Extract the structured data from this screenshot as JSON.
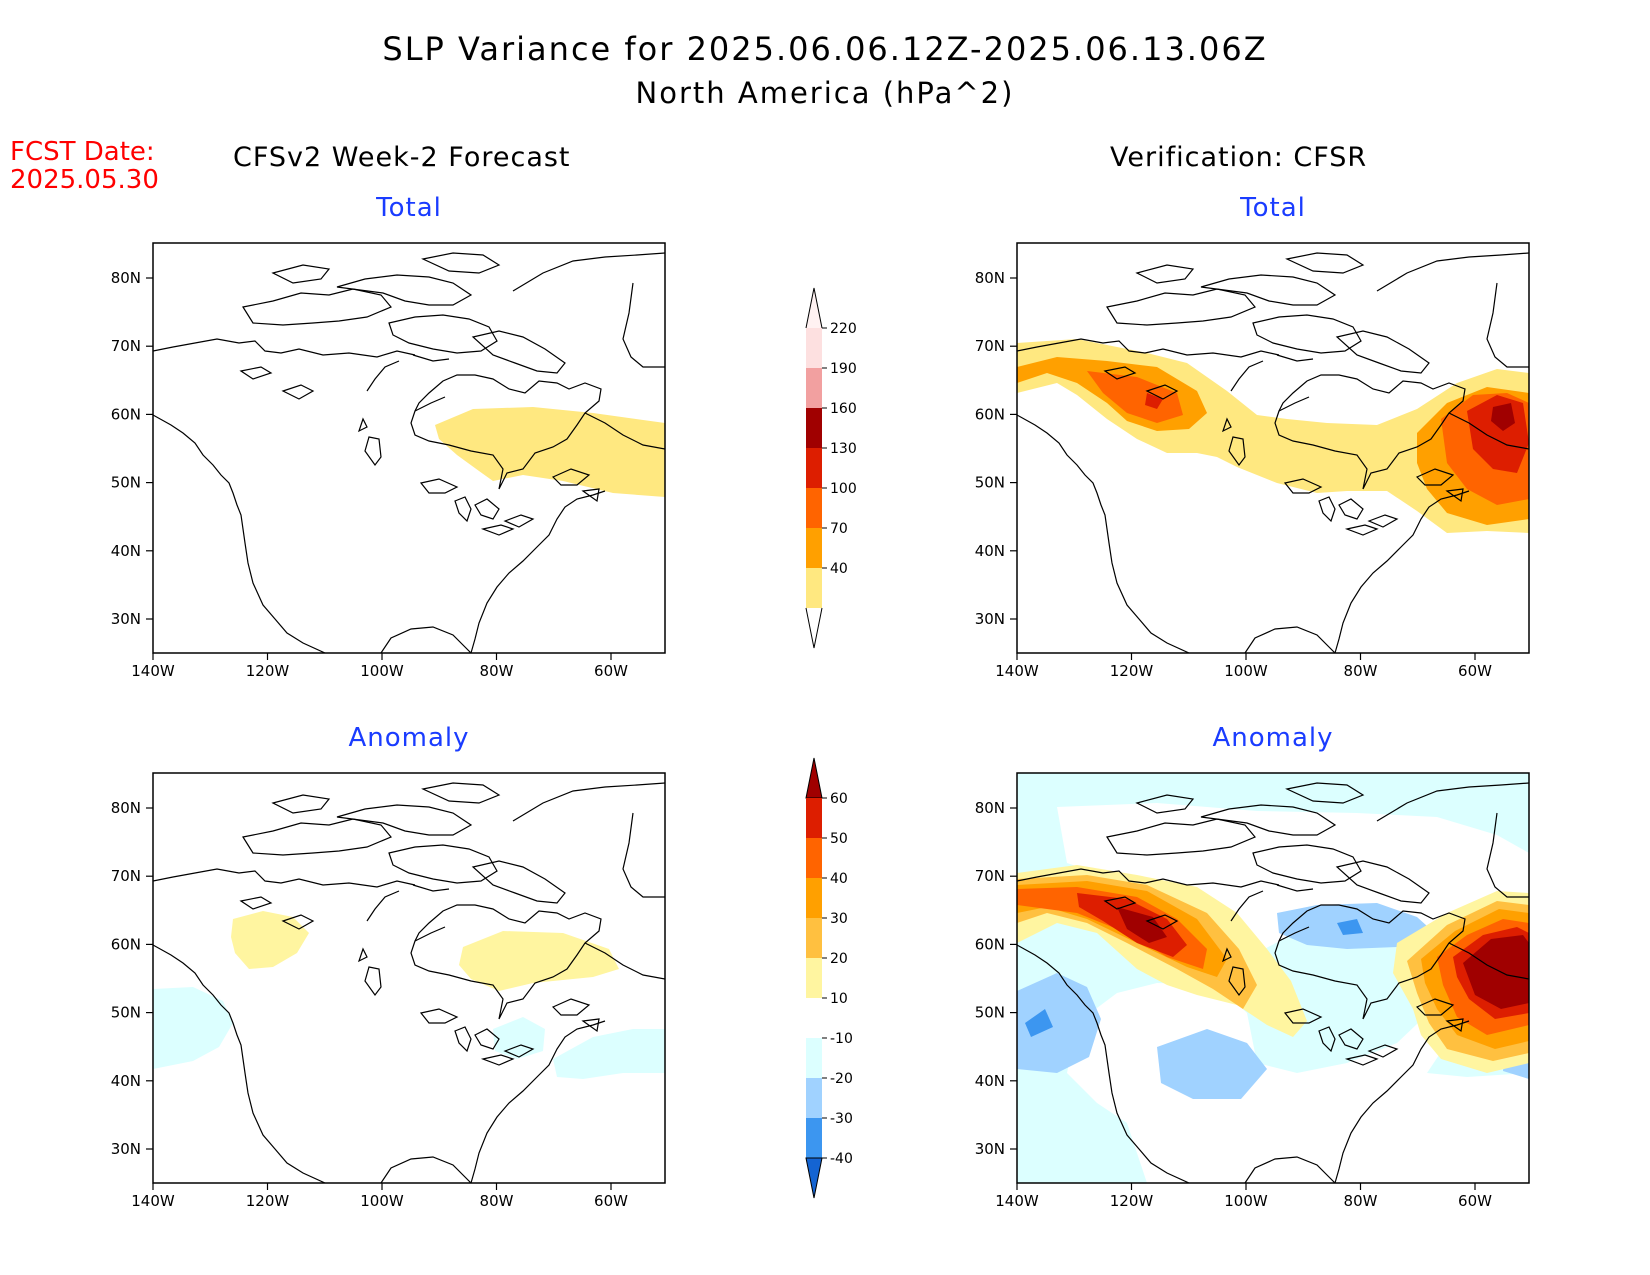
{
  "header": {
    "title": "SLP Variance for 2025.06.06.12Z-2025.06.13.06Z",
    "subtitle": "North America (hPa^2)",
    "fcst_label": "FCST Date:",
    "fcst_date": "2025.05.30"
  },
  "columns": {
    "left": "CFSv2 Week-2 Forecast",
    "right": "Verification: CFSR"
  },
  "panels": {
    "top_left": "Total",
    "top_right": "Total",
    "bottom_left": "Anomaly",
    "bottom_right": "Anomaly"
  },
  "axes": {
    "lat_labels": [
      "80N",
      "70N",
      "60N",
      "50N",
      "40N",
      "30N"
    ],
    "lon_labels": [
      "140W",
      "120W",
      "100W",
      "80W",
      "60W"
    ]
  },
  "colorbar_total": {
    "labels": [
      "220",
      "190",
      "160",
      "130",
      "100",
      "70",
      "40"
    ],
    "colors": [
      "#fde0e0",
      "#f2a0a0",
      "#a00000",
      "#dd1e00",
      "#ff6400",
      "#ffa000",
      "#ffe880"
    ]
  },
  "colorbar_anomaly": {
    "labels": [
      "60",
      "50",
      "40",
      "30",
      "20",
      "10",
      "-10",
      "-20",
      "-30",
      "-40"
    ],
    "colors": [
      "#a00000",
      "#dd1e00",
      "#ff6400",
      "#ffa000",
      "#ffc040",
      "#fff5a0",
      "#ffffff",
      "#dcffff",
      "#a0d2ff",
      "#3c96f0",
      "#1464d2"
    ]
  }
}
